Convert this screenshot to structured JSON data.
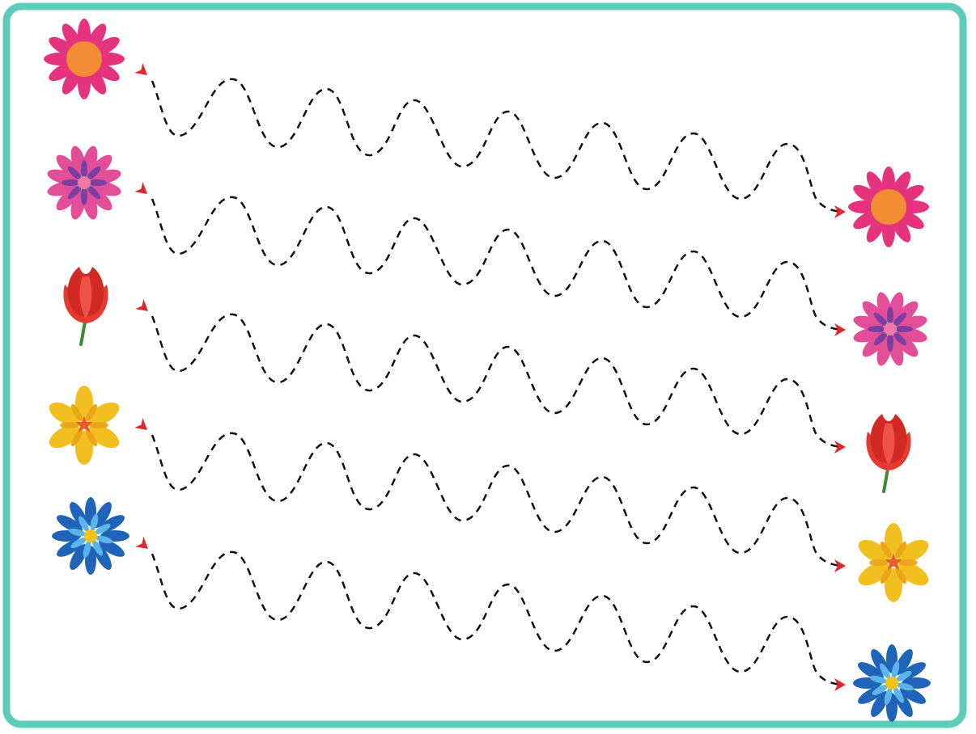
{
  "worksheet": {
    "frame_color": "#5ccdbd",
    "path_color": "#111111",
    "arrow_color": "#e3262c",
    "rows": [
      {
        "start_flower": "pink-daisy-orange-center-icon",
        "end_flower": "pink-daisy-orange-center-icon"
      },
      {
        "start_flower": "magenta-purple-daisy-icon",
        "end_flower": "magenta-purple-daisy-icon"
      },
      {
        "start_flower": "red-tulip-icon",
        "end_flower": "red-tulip-icon"
      },
      {
        "start_flower": "yellow-flower-icon",
        "end_flower": "yellow-flower-icon"
      },
      {
        "start_flower": "blue-daisy-icon",
        "end_flower": "blue-daisy-icon"
      }
    ]
  }
}
